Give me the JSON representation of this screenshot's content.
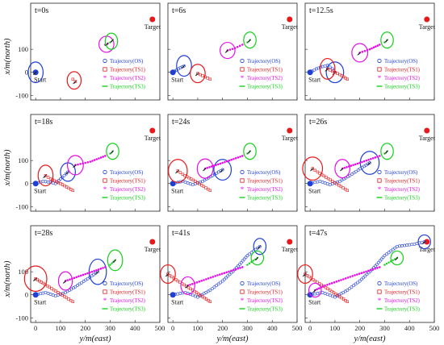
{
  "figure": {
    "ylabel": "x/m(north)",
    "xlabel": "y/m(east)",
    "legend": [
      "Trajectory(OS)",
      "Trajectory(TS1)",
      "Trajectory(TS2)",
      "Trajectory(TS3)"
    ],
    "start_label": "Start",
    "target_label": "Target",
    "colors": {
      "OS": "#1f3fd6",
      "TS1": "#e8191b",
      "TS2": "#e60fe6",
      "TS3": "#13d11a",
      "target": "#e8191b"
    }
  },
  "chart_data": [
    {
      "type": "scatter",
      "time_label": "t=0s",
      "xlim": [
        -20,
        500
      ],
      "ylim": [
        -120,
        300
      ],
      "xticks": [
        0,
        100,
        200,
        300,
        400,
        500
      ],
      "yticks": [
        -100,
        0,
        100
      ],
      "target": [
        470,
        230
      ],
      "start": [
        0,
        0
      ],
      "OS": {
        "path": [
          [
            0,
            0
          ]
        ],
        "ellipse": {
          "center": [
            0,
            0
          ],
          "rx": 30,
          "ry": 45
        }
      },
      "TS1": {
        "path": [
          [
            150,
            -30
          ],
          [
            160,
            -40
          ]
        ],
        "ellipse": {
          "center": [
            155,
            -35
          ],
          "rx": 28,
          "ry": 38
        }
      },
      "TS2": {
        "path": [
          [
            280,
            120
          ],
          [
            290,
            125
          ]
        ],
        "ellipse": {
          "center": [
            285,
            122
          ],
          "rx": 30,
          "ry": 35
        }
      },
      "TS3": {
        "path": [
          [
            300,
            130
          ],
          [
            310,
            140
          ]
        ],
        "ellipse": {
          "center": [
            305,
            135
          ],
          "rx": 25,
          "ry": 35
        }
      }
    },
    {
      "type": "scatter",
      "time_label": "t=6s",
      "xlim": [
        -20,
        500
      ],
      "ylim": [
        -120,
        300
      ],
      "xticks": [
        0,
        100,
        200,
        300,
        400,
        500
      ],
      "yticks": [
        -100,
        0,
        100
      ],
      "target": [
        470,
        230
      ],
      "start": [
        0,
        0
      ],
      "OS": {
        "path": [
          [
            0,
            0
          ],
          [
            15,
            10
          ],
          [
            30,
            20
          ],
          [
            45,
            28
          ]
        ],
        "ellipse": {
          "center": [
            45,
            28
          ],
          "rx": 30,
          "ry": 45
        }
      },
      "TS1": {
        "path": [
          [
            150,
            -30
          ],
          [
            130,
            -20
          ],
          [
            110,
            -10
          ],
          [
            100,
            -5
          ]
        ],
        "ellipse": {
          "center": [
            100,
            -5
          ],
          "rx": 30,
          "ry": 40
        }
      },
      "TS2": {
        "path": [
          [
            280,
            120
          ],
          [
            250,
            105
          ],
          [
            220,
            95
          ]
        ],
        "ellipse": {
          "center": [
            220,
            95
          ],
          "rx": 30,
          "ry": 35
        }
      },
      "TS3": {
        "path": [
          [
            300,
            130
          ],
          [
            310,
            140
          ]
        ],
        "ellipse": {
          "center": [
            310,
            140
          ],
          "rx": 25,
          "ry": 35
        }
      }
    },
    {
      "type": "scatter",
      "time_label": "t=12.5s",
      "xlim": [
        -20,
        500
      ],
      "ylim": [
        -120,
        300
      ],
      "xticks": [
        0,
        100,
        200,
        300,
        400,
        500
      ],
      "yticks": [
        -100,
        0,
        100
      ],
      "target": [
        470,
        230
      ],
      "start": [
        0,
        0
      ],
      "OS": {
        "path": [
          [
            0,
            0
          ],
          [
            25,
            15
          ],
          [
            50,
            25
          ],
          [
            70,
            30
          ],
          [
            90,
            15
          ],
          [
            100,
            0
          ]
        ],
        "ellipse": {
          "center": [
            100,
            0
          ],
          "rx": 35,
          "ry": 45
        }
      },
      "TS1": {
        "path": [
          [
            150,
            -30
          ],
          [
            120,
            -10
          ],
          [
            90,
            5
          ],
          [
            70,
            15
          ]
        ],
        "ellipse": {
          "center": [
            70,
            15
          ],
          "rx": 30,
          "ry": 45
        }
      },
      "TS2": {
        "path": [
          [
            280,
            120
          ],
          [
            240,
            100
          ],
          [
            200,
            85
          ]
        ],
        "ellipse": {
          "center": [
            200,
            85
          ],
          "rx": 32,
          "ry": 40
        }
      },
      "TS3": {
        "path": [
          [
            300,
            130
          ],
          [
            310,
            140
          ]
        ],
        "ellipse": {
          "center": [
            310,
            140
          ],
          "rx": 25,
          "ry": 35
        }
      }
    },
    {
      "type": "scatter",
      "time_label": "t=18s",
      "xlim": [
        -20,
        500
      ],
      "ylim": [
        -120,
        300
      ],
      "xticks": [
        0,
        100,
        200,
        300,
        400,
        500
      ],
      "yticks": [
        -100,
        0,
        100
      ],
      "target": [
        470,
        230
      ],
      "start": [
        0,
        0
      ],
      "OS": {
        "path": [
          [
            0,
            0
          ],
          [
            30,
            10
          ],
          [
            60,
            5
          ],
          [
            80,
            0
          ],
          [
            100,
            20
          ],
          [
            130,
            50
          ]
        ],
        "ellipse": {
          "center": [
            130,
            50
          ],
          "rx": 30,
          "ry": 40
        }
      },
      "TS1": {
        "path": [
          [
            150,
            -30
          ],
          [
            100,
            0
          ],
          [
            60,
            20
          ],
          [
            40,
            35
          ]
        ],
        "ellipse": {
          "center": [
            40,
            35
          ],
          "rx": 30,
          "ry": 45
        }
      },
      "TS2": {
        "path": [
          [
            280,
            120
          ],
          [
            220,
            95
          ],
          [
            160,
            80
          ]
        ],
        "ellipse": {
          "center": [
            160,
            80
          ],
          "rx": 32,
          "ry": 42
        }
      },
      "TS3": {
        "path": [
          [
            300,
            130
          ],
          [
            310,
            140
          ]
        ],
        "ellipse": {
          "center": [
            310,
            140
          ],
          "rx": 25,
          "ry": 35
        }
      }
    },
    {
      "type": "scatter",
      "time_label": "t=24s",
      "xlim": [
        -20,
        500
      ],
      "ylim": [
        -120,
        300
      ],
      "xticks": [
        0,
        100,
        200,
        300,
        400,
        500
      ],
      "yticks": [
        -100,
        0,
        100
      ],
      "target": [
        470,
        230
      ],
      "start": [
        0,
        0
      ],
      "OS": {
        "path": [
          [
            0,
            0
          ],
          [
            40,
            10
          ],
          [
            80,
            -5
          ],
          [
            120,
            10
          ],
          [
            160,
            35
          ],
          [
            200,
            60
          ]
        ],
        "ellipse": {
          "center": [
            200,
            60
          ],
          "rx": 35,
          "ry": 45
        }
      },
      "TS1": {
        "path": [
          [
            150,
            -30
          ],
          [
            90,
            10
          ],
          [
            40,
            40
          ],
          [
            20,
            55
          ]
        ],
        "ellipse": {
          "center": [
            20,
            55
          ],
          "rx": 38,
          "ry": 50
        }
      },
      "TS2": {
        "path": [
          [
            280,
            120
          ],
          [
            200,
            90
          ],
          [
            130,
            65
          ]
        ],
        "ellipse": {
          "center": [
            130,
            65
          ],
          "rx": 32,
          "ry": 42
        }
      },
      "TS3": {
        "path": [
          [
            300,
            130
          ],
          [
            310,
            140
          ]
        ],
        "ellipse": {
          "center": [
            310,
            140
          ],
          "rx": 25,
          "ry": 35
        }
      }
    },
    {
      "type": "scatter",
      "time_label": "t=26s",
      "xlim": [
        -20,
        500
      ],
      "ylim": [
        -120,
        300
      ],
      "xticks": [
        0,
        100,
        200,
        300,
        400,
        500
      ],
      "yticks": [
        -100,
        0,
        100
      ],
      "target": [
        470,
        230
      ],
      "start": [
        0,
        0
      ],
      "OS": {
        "path": [
          [
            0,
            0
          ],
          [
            40,
            10
          ],
          [
            80,
            -5
          ],
          [
            120,
            10
          ],
          [
            160,
            35
          ],
          [
            210,
            70
          ],
          [
            240,
            90
          ]
        ],
        "ellipse": {
          "center": [
            240,
            90
          ],
          "rx": 38,
          "ry": 50
        }
      },
      "TS1": {
        "path": [
          [
            150,
            -30
          ],
          [
            90,
            10
          ],
          [
            30,
            50
          ],
          [
            10,
            65
          ]
        ],
        "ellipse": {
          "center": [
            10,
            65
          ],
          "rx": 40,
          "ry": 50
        }
      },
      "TS2": {
        "path": [
          [
            280,
            120
          ],
          [
            200,
            90
          ],
          [
            130,
            65
          ]
        ],
        "ellipse": {
          "center": [
            130,
            65
          ],
          "rx": 30,
          "ry": 40
        }
      },
      "TS3": {
        "path": [
          [
            300,
            130
          ],
          [
            310,
            140
          ]
        ],
        "ellipse": {
          "center": [
            310,
            140
          ],
          "rx": 25,
          "ry": 35
        }
      }
    },
    {
      "type": "scatter",
      "time_label": "t=28s",
      "xlim": [
        -20,
        500
      ],
      "ylim": [
        -120,
        300
      ],
      "xticks": [
        0,
        100,
        200,
        300,
        400,
        500
      ],
      "yticks": [
        -100,
        0,
        100
      ],
      "target": [
        470,
        230
      ],
      "start": [
        0,
        0
      ],
      "OS": {
        "path": [
          [
            0,
            0
          ],
          [
            40,
            10
          ],
          [
            80,
            -5
          ],
          [
            120,
            10
          ],
          [
            160,
            35
          ],
          [
            210,
            70
          ],
          [
            250,
            100
          ]
        ],
        "ellipse": {
          "center": [
            250,
            100
          ],
          "rx": 35,
          "ry": 55
        }
      },
      "TS1": {
        "path": [
          [
            150,
            -30
          ],
          [
            90,
            10
          ],
          [
            30,
            50
          ],
          [
            0,
            70
          ]
        ],
        "ellipse": {
          "center": [
            0,
            70
          ],
          "rx": 45,
          "ry": 55
        }
      },
      "TS2": {
        "path": [
          [
            280,
            120
          ],
          [
            200,
            90
          ],
          [
            120,
            60
          ]
        ],
        "ellipse": {
          "center": [
            120,
            60
          ],
          "rx": 28,
          "ry": 40
        }
      },
      "TS3": {
        "path": [
          [
            300,
            130
          ],
          [
            320,
            150
          ]
        ],
        "ellipse": {
          "center": [
            320,
            150
          ],
          "rx": 30,
          "ry": 45
        }
      }
    },
    {
      "type": "scatter",
      "time_label": "t=41s",
      "xlim": [
        -20,
        500
      ],
      "ylim": [
        -120,
        300
      ],
      "xticks": [
        0,
        100,
        200,
        300,
        400,
        500
      ],
      "yticks": [
        -100,
        0,
        100
      ],
      "target": [
        470,
        230
      ],
      "start": [
        0,
        0
      ],
      "OS": {
        "path": [
          [
            0,
            0
          ],
          [
            50,
            10
          ],
          [
            100,
            -10
          ],
          [
            150,
            20
          ],
          [
            200,
            60
          ],
          [
            250,
            110
          ],
          [
            300,
            170
          ],
          [
            350,
            210
          ]
        ],
        "ellipse": {
          "center": [
            350,
            210
          ],
          "rx": 25,
          "ry": 35
        }
      },
      "TS1": {
        "path": [
          [
            150,
            -30
          ],
          [
            80,
            20
          ],
          [
            20,
            60
          ],
          [
            -20,
            90
          ]
        ],
        "ellipse": {
          "center": [
            -20,
            90
          ],
          "rx": 30,
          "ry": 40
        }
      },
      "TS2": {
        "path": [
          [
            280,
            120
          ],
          [
            180,
            85
          ],
          [
            60,
            40
          ]
        ],
        "ellipse": {
          "center": [
            60,
            40
          ],
          "rx": 28,
          "ry": 38
        }
      },
      "TS3": {
        "path": [
          [
            300,
            130
          ],
          [
            340,
            160
          ]
        ],
        "ellipse": {
          "center": [
            340,
            160
          ],
          "rx": 25,
          "ry": 30
        }
      }
    },
    {
      "type": "scatter",
      "time_label": "t=47s",
      "xlim": [
        -20,
        500
      ],
      "ylim": [
        -120,
        300
      ],
      "xticks": [
        0,
        100,
        200,
        300,
        400,
        500
      ],
      "yticks": [
        -100,
        0,
        100
      ],
      "target": [
        470,
        230
      ],
      "start": [
        0,
        0
      ],
      "OS": {
        "path": [
          [
            0,
            0
          ],
          [
            50,
            10
          ],
          [
            100,
            -10
          ],
          [
            150,
            20
          ],
          [
            200,
            60
          ],
          [
            250,
            110
          ],
          [
            300,
            170
          ],
          [
            350,
            210
          ],
          [
            420,
            220
          ],
          [
            460,
            230
          ]
        ],
        "ellipse": {
          "center": [
            460,
            230
          ],
          "rx": 25,
          "ry": 30
        }
      },
      "TS1": {
        "path": [
          [
            150,
            -30
          ],
          [
            80,
            20
          ],
          [
            20,
            60
          ],
          [
            -20,
            90
          ]
        ],
        "ellipse": {
          "center": [
            -20,
            90
          ],
          "rx": 30,
          "ry": 40
        }
      },
      "TS2": {
        "path": [
          [
            280,
            120
          ],
          [
            180,
            85
          ],
          [
            60,
            40
          ],
          [
            20,
            20
          ]
        ],
        "ellipse": {
          "center": [
            20,
            20
          ],
          "rx": 25,
          "ry": 30
        }
      },
      "TS3": {
        "path": [
          [
            300,
            130
          ],
          [
            350,
            160
          ]
        ],
        "ellipse": {
          "center": [
            350,
            160
          ],
          "rx": 25,
          "ry": 30
        }
      }
    }
  ]
}
